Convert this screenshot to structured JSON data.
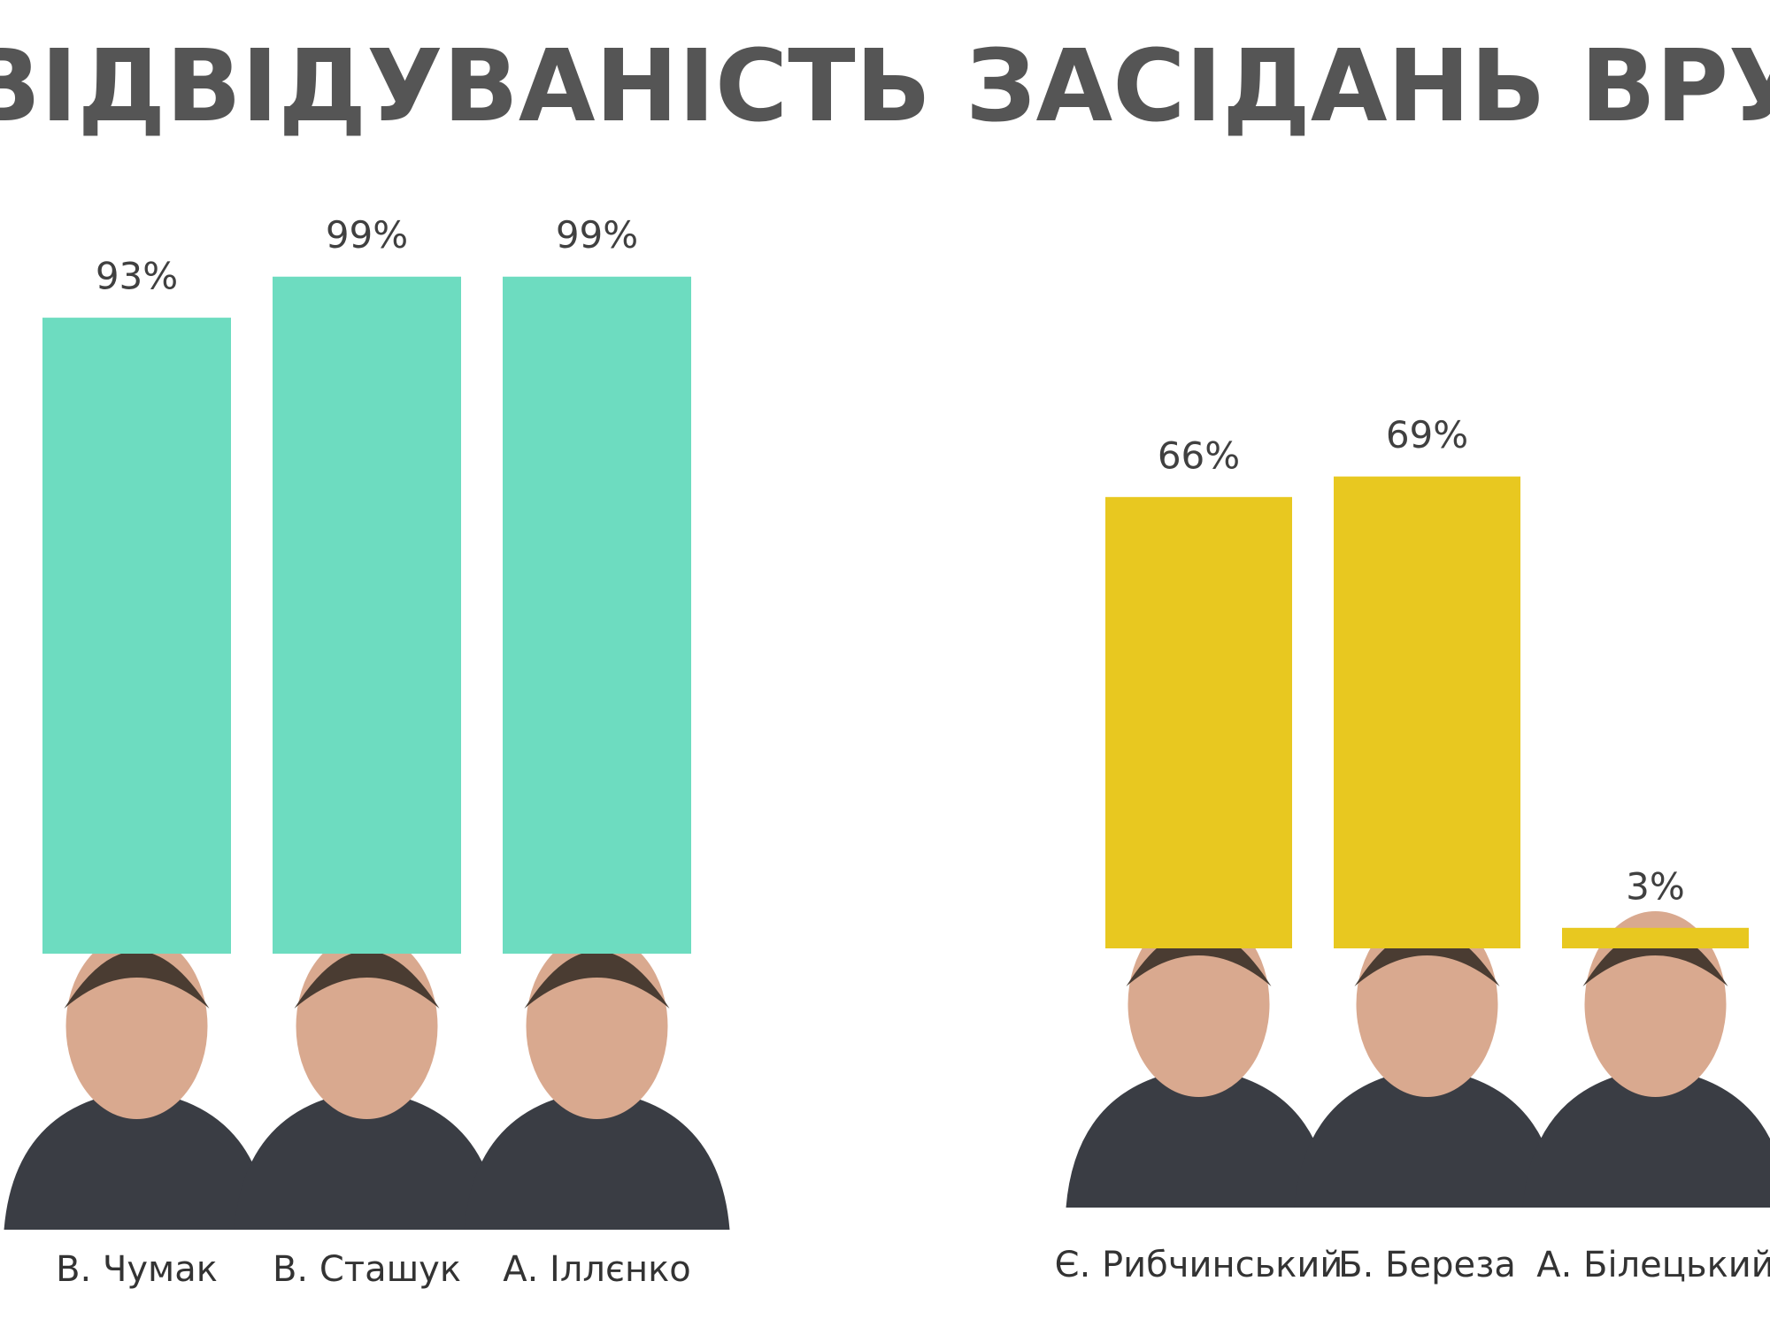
{
  "title": "ВІДВІДУВАНІСТЬ ЗАСІДАНЬ ВРУ",
  "chart_data": [
    {
      "type": "bar",
      "categories": [
        "В. Чумак",
        "В. Сташук",
        "А. Іллєнко"
      ],
      "values": [
        93,
        99,
        99
      ],
      "value_labels": [
        "93%",
        "99%",
        "99%"
      ],
      "color": "#6ddcc0"
    },
    {
      "type": "bar",
      "categories": [
        "Є. Рибчинський",
        "Б. Береза",
        "А. Білецький"
      ],
      "values": [
        66,
        69,
        3
      ],
      "value_labels": [
        "66%",
        "69%",
        "3%"
      ],
      "color": "#e8c820"
    }
  ]
}
